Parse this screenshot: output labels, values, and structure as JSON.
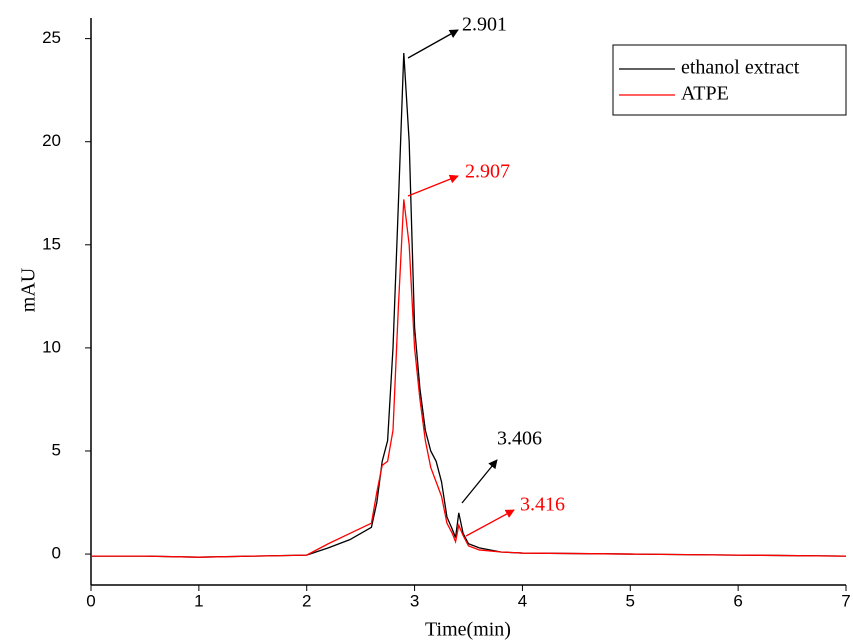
{
  "chart_data": {
    "type": "line",
    "x_label": "Time(min)",
    "y_label": "mAU",
    "x": [
      0,
      0.5,
      1,
      1.5,
      2,
      2.2,
      2.4,
      2.6,
      2.65,
      2.7,
      2.75,
      2.8,
      2.85,
      2.9,
      2.95,
      3.0,
      3.05,
      3.1,
      3.15,
      3.2,
      3.25,
      3.3,
      3.35,
      3.38,
      3.41,
      3.45,
      3.5,
      3.6,
      3.8,
      4,
      5,
      6,
      7
    ],
    "series": [
      {
        "name": "ethanol extract",
        "color": "#000000",
        "values": [
          -0.1,
          -0.1,
          -0.15,
          -0.1,
          -0.05,
          0.3,
          0.7,
          1.3,
          2.5,
          4.5,
          5.5,
          10,
          17,
          24.3,
          20,
          11,
          8,
          6,
          5,
          4.5,
          3.5,
          1.8,
          1.2,
          0.8,
          2.0,
          1.0,
          0.5,
          0.3,
          0.1,
          0.05,
          0,
          -0.05,
          -0.1
        ]
      },
      {
        "name": "ATPE",
        "color": "#ff0000",
        "values": [
          -0.1,
          -0.1,
          -0.15,
          -0.1,
          -0.05,
          0.5,
          1.0,
          1.5,
          3.0,
          4.3,
          4.5,
          6,
          12,
          17.2,
          15,
          10,
          7.5,
          5.5,
          4.2,
          3.5,
          2.8,
          1.5,
          1.0,
          0.6,
          1.4,
          0.9,
          0.4,
          0.2,
          0.1,
          0.05,
          0,
          -0.05,
          -0.1
        ]
      }
    ],
    "annotations": [
      {
        "text": "2.901",
        "color": "#000000"
      },
      {
        "text": "2.907",
        "color": "#ff0000"
      },
      {
        "text": "3.406",
        "color": "#000000"
      },
      {
        "text": "3.416",
        "color": "#ff0000"
      }
    ],
    "xlim": [
      0,
      7
    ],
    "xticks": [
      0,
      1,
      2,
      3,
      4,
      5,
      6,
      7
    ],
    "ylim": [
      -1.5,
      26
    ],
    "yticks": [
      0,
      5,
      10,
      15,
      20,
      25
    ],
    "grid": false,
    "legend": "upper right"
  }
}
